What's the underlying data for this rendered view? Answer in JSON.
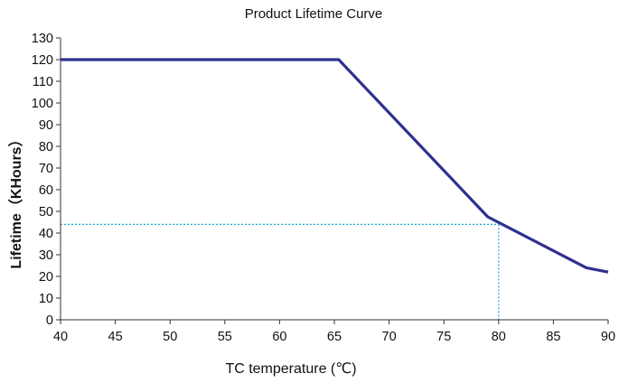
{
  "chart_data": {
    "type": "line",
    "title": "Product Lifetime Curve",
    "xlabel": "TC  temperature (℃)",
    "ylabel": "Lifetime（KHours）",
    "xlim": [
      40,
      90
    ],
    "ylim": [
      0,
      130
    ],
    "xticks": [
      40,
      45,
      50,
      55,
      60,
      65,
      70,
      75,
      80,
      85,
      90
    ],
    "yticks": [
      0,
      10,
      20,
      30,
      40,
      50,
      60,
      70,
      80,
      90,
      100,
      110,
      120,
      130
    ],
    "grid": false,
    "series": [
      {
        "x": [
          40,
          65.4,
          79,
          88,
          90
        ],
        "y": [
          120,
          120,
          47.5,
          24,
          22
        ],
        "color": "#2e3191"
      }
    ],
    "reference_point": {
      "x": 80,
      "y": 44,
      "color": "#1aa6d6"
    }
  }
}
